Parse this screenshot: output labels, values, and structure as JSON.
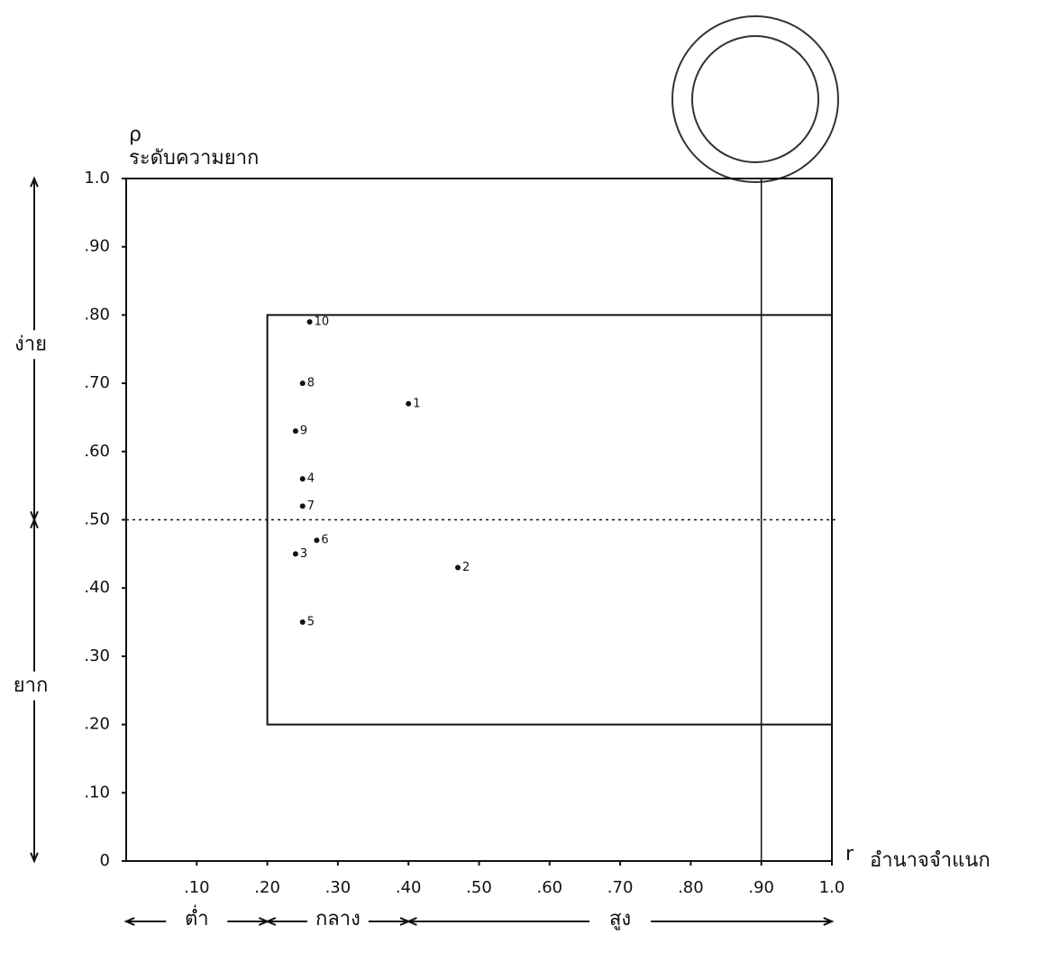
{
  "chart_data": {
    "type": "scatter",
    "y_symbol": "ρ",
    "ylabel": "ระดับความยาก",
    "x_symbol": "r",
    "xlabel": "อำนาจจำแนก",
    "x": [
      0.4,
      0.47,
      0.24,
      0.25,
      0.25,
      0.27,
      0.25,
      0.25,
      0.24,
      0.26
    ],
    "values": [
      0.67,
      0.43,
      0.45,
      0.56,
      0.35,
      0.47,
      0.52,
      0.7,
      0.63,
      0.79
    ],
    "point_labels": [
      "1",
      "2",
      "3",
      "4",
      "5",
      "6",
      "7",
      "8",
      "9",
      "10"
    ],
    "color": "#111111",
    "xlim": [
      0,
      1
    ],
    "ylim": [
      0,
      1
    ],
    "xticks": [
      {
        "value": 0.1,
        "label": ".10"
      },
      {
        "value": 0.2,
        "label": ".20"
      },
      {
        "value": 0.3,
        "label": ".30"
      },
      {
        "value": 0.4,
        "label": ".40"
      },
      {
        "value": 0.5,
        "label": ".50"
      },
      {
        "value": 0.6,
        "label": ".60"
      },
      {
        "value": 0.7,
        "label": ".70"
      },
      {
        "value": 0.8,
        "label": ".80"
      },
      {
        "value": 0.9,
        "label": ".90"
      },
      {
        "value": 1,
        "label": "1.0"
      }
    ],
    "yticks": [
      0,
      {
        "value": 0.1,
        "label": ".10"
      },
      {
        "value": 0.2,
        "label": ".20"
      },
      {
        "value": 0.3,
        "label": ".30"
      },
      {
        "value": 0.4,
        "label": ".40"
      },
      {
        "value": 0.5,
        "label": ".50"
      },
      {
        "value": 0.6,
        "label": ".60"
      },
      {
        "value": 0.7,
        "label": ".70"
      },
      {
        "value": 0.8,
        "label": ".80"
      },
      {
        "value": 0.9,
        "label": ".90"
      },
      {
        "value": 1,
        "label": "1.0"
      }
    ],
    "reference_lines": {
      "box": {
        "x": [
          0.2,
          1.0
        ],
        "y": [
          0.2,
          0.8
        ]
      },
      "hline": 0.5,
      "vline": 0.9
    },
    "y_ranges": [
      {
        "label": "ง่าย",
        "range": [
          0.5,
          1.0
        ]
      },
      {
        "label": "ยาก",
        "range": [
          0,
          0.5
        ]
      }
    ],
    "x_ranges": [
      {
        "label": "ต่ำ",
        "range": [
          0,
          0.2
        ]
      },
      {
        "label": "กลาง",
        "range": [
          0.2,
          0.4
        ]
      },
      {
        "label": "สูง",
        "range": [
          0.4,
          1.0
        ]
      }
    ]
  }
}
